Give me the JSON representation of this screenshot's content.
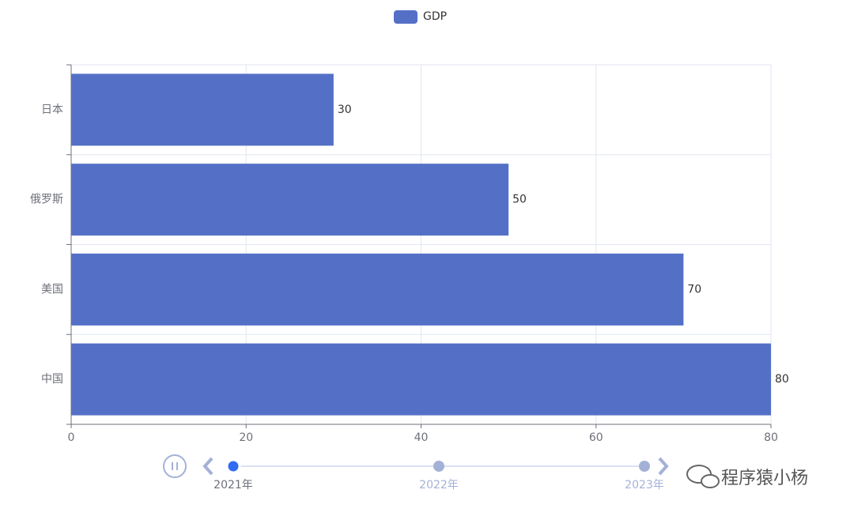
{
  "chart_data": {
    "type": "bar",
    "orientation": "horizontal",
    "categories": [
      "中国",
      "美国",
      "俄罗斯",
      "日本"
    ],
    "series": [
      {
        "name": "GDP",
        "color": "#5470c6",
        "values": [
          80,
          70,
          50,
          30
        ]
      }
    ],
    "xlim": [
      0,
      80
    ],
    "xticks": [
      0,
      20,
      40,
      60,
      80
    ],
    "grid": true,
    "legend": "top",
    "timeline": {
      "labels": [
        "2021年",
        "2022年",
        "2023年"
      ],
      "current": 0
    }
  },
  "watermark": "程序猿小杨"
}
